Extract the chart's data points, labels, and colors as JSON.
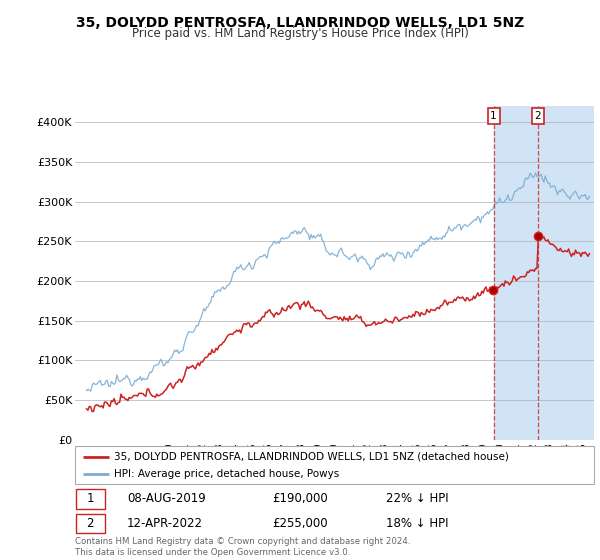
{
  "title": "35, DOLYDD PENTROSFA, LLANDRINDOD WELLS, LD1 5NZ",
  "subtitle": "Price paid vs. HM Land Registry's House Price Index (HPI)",
  "ylim": [
    0,
    420000
  ],
  "yticks": [
    0,
    50000,
    100000,
    150000,
    200000,
    250000,
    300000,
    350000,
    400000
  ],
  "ytick_labels": [
    "£0",
    "£50K",
    "£100K",
    "£150K",
    "£200K",
    "£250K",
    "£300K",
    "£350K",
    "£400K"
  ],
  "hpi_color": "#7aadd4",
  "price_color": "#cc2222",
  "dashed_color": "#cc2222",
  "shade_color": "#d0e4f5",
  "transaction1_year": 2019,
  "transaction1_month": 8,
  "transaction1_price": 190000,
  "transaction1_date": "08-AUG-2019",
  "transaction1_pct": "22% ↓ HPI",
  "transaction2_year": 2022,
  "transaction2_month": 4,
  "transaction2_price": 255000,
  "transaction2_date": "12-APR-2022",
  "transaction2_pct": "18% ↓ HPI",
  "legend_label1": "35, DOLYDD PENTROSFA, LLANDRINDOD WELLS, LD1 5NZ (detached house)",
  "legend_label2": "HPI: Average price, detached house, Powys",
  "footnote": "Contains HM Land Registry data © Crown copyright and database right 2024.\nThis data is licensed under the Open Government Licence v3.0.",
  "x_start_year": 1995,
  "x_end_year": 2025
}
